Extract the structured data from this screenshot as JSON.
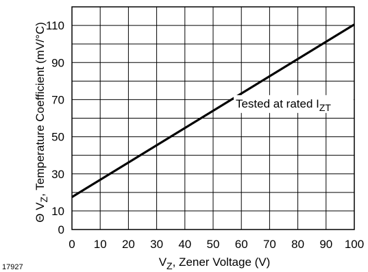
{
  "chart_data": {
    "type": "line",
    "title": "",
    "xlabel": {
      "main": "V",
      "sub": "Z",
      "rest": ", Zener Voltage (V)"
    },
    "ylabel": {
      "prefix": "Θ V",
      "sub": "Z",
      "rest": ", Temperature Coefficient (mV/°C)"
    },
    "xlim": [
      0,
      100
    ],
    "ylim": [
      0,
      120
    ],
    "x_ticks": [
      0,
      10,
      20,
      30,
      40,
      50,
      60,
      70,
      80,
      90,
      100
    ],
    "y_ticks": [
      0,
      10,
      30,
      50,
      70,
      90,
      110
    ],
    "x_grid_step": 10,
    "y_grid_step": 10,
    "grid": true,
    "series": [
      {
        "x": [
          0,
          100
        ],
        "y": [
          17.5,
          110.5
        ]
      }
    ],
    "annotation": {
      "main": "Tested at rated I",
      "sub": "ZT",
      "x": 58,
      "y": 68
    }
  },
  "figure_id": "17927",
  "colors": {
    "line": "#000000",
    "grid": "#000000",
    "background": "#ffffff"
  }
}
